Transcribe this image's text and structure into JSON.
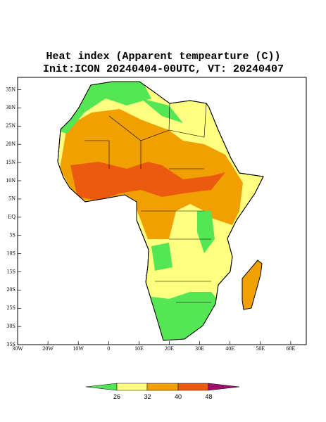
{
  "map": {
    "title": "Heat index (Apparent tempearture (C))",
    "subtitle": "Init:ICON 20240404-00UTC, VT: 20240407",
    "lon_ticks": [
      "30W",
      "20W",
      "10W",
      "0",
      "10E",
      "20E",
      "30E",
      "40E",
      "50E",
      "60E"
    ],
    "lat_ticks": [
      "35N",
      "30N",
      "25N",
      "20N",
      "15N",
      "10N",
      "5N",
      "EQ",
      "5S",
      "10S",
      "15S",
      "20S",
      "25S",
      "30S",
      "35S"
    ],
    "colorbar": {
      "labels": [
        "26",
        "32",
        "40",
        "48"
      ]
    }
  }
}
